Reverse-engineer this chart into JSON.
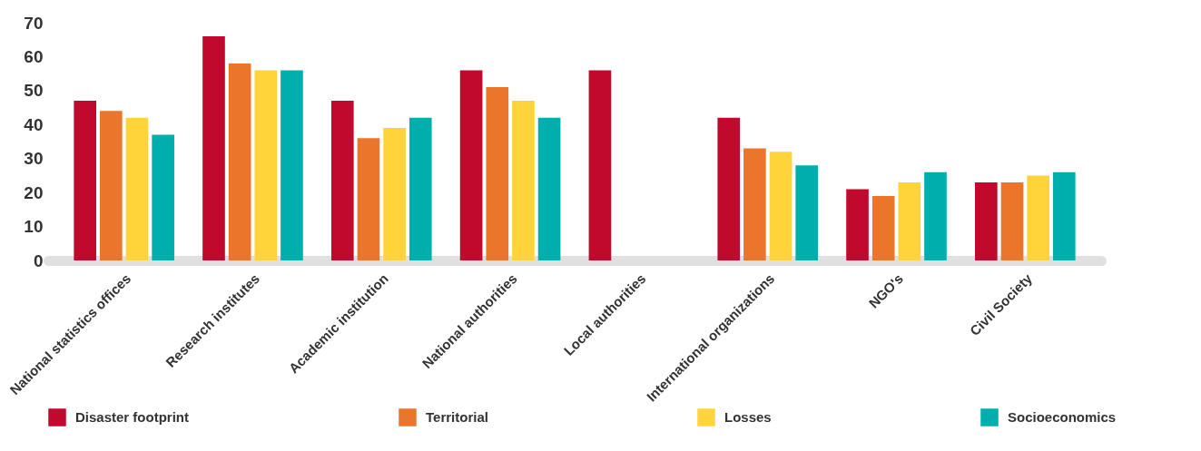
{
  "chart_data": {
    "type": "bar",
    "categories": [
      "National statistics offices",
      "Research institutes",
      "Academic institution",
      "National authorities",
      "Local authorities",
      "International organizations",
      "NGO's",
      "Civil Society"
    ],
    "series": [
      {
        "name": "Disaster footprint",
        "color": "#c0092c",
        "values": [
          47,
          66,
          47,
          56,
          56,
          42,
          21,
          23
        ]
      },
      {
        "name": "Territorial",
        "color": "#eb752b",
        "values": [
          44,
          58,
          36,
          51,
          null,
          33,
          19,
          23
        ]
      },
      {
        "name": "Losses",
        "color": "#fed43a",
        "values": [
          42,
          56,
          39,
          47,
          null,
          32,
          23,
          25
        ]
      },
      {
        "name": "Socioeconomics",
        "color": "#00afad",
        "values": [
          37,
          56,
          42,
          42,
          null,
          28,
          26,
          26
        ]
      }
    ],
    "ylim": [
      0,
      70
    ],
    "yticks": [
      0,
      10,
      20,
      30,
      40,
      50,
      60,
      70
    ],
    "grid": false,
    "legend": "bottom"
  }
}
